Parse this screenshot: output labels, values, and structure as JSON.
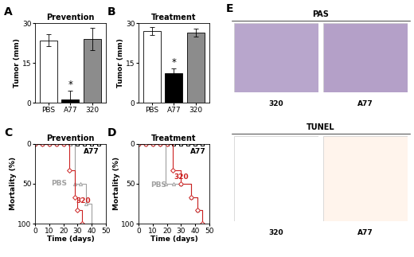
{
  "chart_data": [
    {
      "panel": "A",
      "type": "bar",
      "title": "Prevention",
      "y_label": "Tumor (mm)",
      "categories": [
        "PBS",
        "A77",
        "320"
      ],
      "values": [
        23.5,
        1.2,
        24.0
      ],
      "errors": [
        2.2,
        3.3,
        4.3
      ],
      "colors": [
        "#ffffff",
        "#000000",
        "#8c8c8c"
      ],
      "ylim": [
        0,
        30
      ],
      "yticks": [
        0,
        15,
        30
      ],
      "annotations": [
        {
          "category": "A77",
          "text": "*"
        }
      ]
    },
    {
      "panel": "B",
      "type": "bar",
      "title": "Treatment",
      "y_label": "Tumor (mm)",
      "categories": [
        "PBS",
        "A77",
        "320"
      ],
      "values": [
        27.0,
        11.0,
        26.5
      ],
      "errors": [
        1.5,
        1.8,
        1.5
      ],
      "colors": [
        "#ffffff",
        "#000000",
        "#8c8c8c"
      ],
      "ylim": [
        0,
        30
      ],
      "yticks": [
        0,
        15,
        30
      ],
      "annotations": [
        {
          "category": "A77",
          "text": "*"
        }
      ]
    },
    {
      "panel": "C",
      "type": "line",
      "title": "Prevention",
      "x_label": "Time (days)",
      "y_label": "Mortality (%)",
      "xlim": [
        0,
        50
      ],
      "xticks": [
        0,
        10,
        20,
        30,
        40,
        50
      ],
      "ylim": [
        100,
        0
      ],
      "yticks": [
        0,
        50,
        100
      ],
      "line_style": "step",
      "series": [
        {
          "name": "A77",
          "color": "#000000",
          "marker": "square",
          "x": [
            0,
            5,
            10,
            15,
            20,
            25,
            30,
            35,
            40,
            45
          ],
          "values": [
            0,
            0,
            0,
            0,
            0,
            0,
            0,
            0,
            0,
            0
          ]
        },
        {
          "name": "PBS",
          "color": "#a0a0a0",
          "marker": "triangle",
          "x": [
            0,
            5,
            10,
            15,
            20,
            25,
            28,
            32,
            36,
            40
          ],
          "values": [
            0,
            0,
            0,
            0,
            0,
            0,
            50,
            50,
            75,
            100
          ]
        },
        {
          "name": "320",
          "color": "#cc2222",
          "marker": "diamond",
          "x": [
            0,
            5,
            10,
            15,
            20,
            24,
            28,
            30,
            33
          ],
          "values": [
            0,
            0,
            0,
            0,
            0,
            33,
            67,
            83,
            100
          ]
        }
      ],
      "annotations": [
        {
          "series": "A77",
          "x": 40,
          "y": 10
        },
        {
          "series": "PBS",
          "x": 17,
          "y": 50
        },
        {
          "series": "320",
          "x": 34,
          "y": 72
        }
      ]
    },
    {
      "panel": "D",
      "type": "line",
      "title": "Treatment",
      "x_label": "Time (days)",
      "y_label": "Mortality (%)",
      "xlim": [
        0,
        50
      ],
      "xticks": [
        0,
        10,
        20,
        30,
        40,
        50
      ],
      "ylim": [
        100,
        0
      ],
      "yticks": [
        0,
        50,
        100
      ],
      "line_style": "step",
      "series": [
        {
          "name": "A77",
          "color": "#000000",
          "marker": "square",
          "x": [
            0,
            5,
            10,
            15,
            20,
            25,
            30,
            35,
            40,
            45
          ],
          "values": [
            0,
            0,
            0,
            0,
            0,
            0,
            0,
            0,
            0,
            0
          ]
        },
        {
          "name": "PBS",
          "color": "#a0a0a0",
          "marker": "triangle",
          "x": [
            0,
            5,
            10,
            15,
            19,
            25,
            30,
            37,
            42,
            45
          ],
          "values": [
            0,
            0,
            0,
            0,
            50,
            50,
            50,
            67,
            83,
            100
          ]
        },
        {
          "name": "320",
          "color": "#cc2222",
          "marker": "diamond",
          "x": [
            0,
            5,
            10,
            15,
            20,
            24,
            30,
            37,
            42,
            45
          ],
          "values": [
            0,
            0,
            0,
            0,
            0,
            33,
            50,
            67,
            83,
            100
          ]
        }
      ],
      "annotations": [
        {
          "series": "A77",
          "x": 42,
          "y": 10
        },
        {
          "series": "320",
          "x": 30,
          "y": 42
        },
        {
          "series": "PBS",
          "x": 14,
          "y": 52
        }
      ]
    }
  ],
  "images": {
    "panel": "E",
    "sections": [
      {
        "title": "PAS",
        "images": [
          "320",
          "A77"
        ]
      },
      {
        "title": "TUNEL",
        "images": [
          "320",
          "A77"
        ]
      }
    ]
  }
}
